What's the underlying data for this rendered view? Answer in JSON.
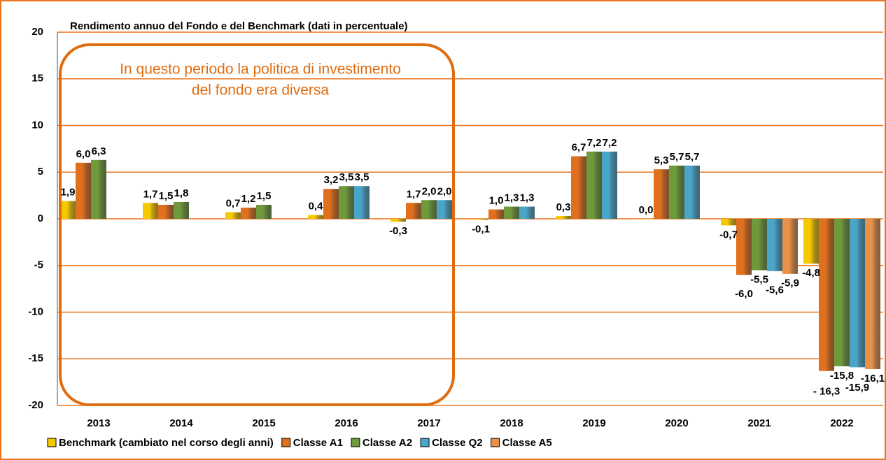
{
  "chart_data": {
    "type": "bar",
    "title": "Rendimento annuo del Fondo e del Benchmark (dati in percentuale)",
    "annotation": [
      "In questo periodo la politica di investimento",
      "del fondo era diversa"
    ],
    "categories": [
      "2013",
      "2014",
      "2015",
      "2016",
      "2017",
      "2018",
      "2019",
      "2020",
      "2021",
      "2022"
    ],
    "ylim": [
      -20,
      20
    ],
    "yticks": [
      -20,
      -15,
      -10,
      -5,
      0,
      5,
      10,
      15,
      20
    ],
    "grid": true,
    "grid_color": "#e8741e",
    "series": [
      {
        "name": "Benchmark (cambiato nel corso degli anni)",
        "color": "#f5c800",
        "values": [
          1.9,
          1.7,
          0.7,
          0.4,
          -0.3,
          -0.1,
          0.3,
          0.0,
          -0.7,
          -4.8
        ],
        "value_labels": [
          "1,9",
          "1,7",
          "0,7",
          "0,4",
          "-0,3",
          "-0,1",
          "0,3",
          "0,0",
          "-0,7",
          "-4,8"
        ]
      },
      {
        "name": "Classe A1",
        "color": "#e0701e",
        "values": [
          6.0,
          1.5,
          1.2,
          3.2,
          1.7,
          1.0,
          6.7,
          5.3,
          -6.0,
          -16.3
        ],
        "value_labels": [
          "6,0",
          "1,5",
          "1,2",
          "3,2",
          "1,7",
          "1,0",
          "6,7",
          "5,3",
          "-6,0",
          "- 16,3"
        ]
      },
      {
        "name": "Classe A2",
        "color": "#6e9a3c",
        "values": [
          6.3,
          1.8,
          1.5,
          3.5,
          2.0,
          1.3,
          7.2,
          5.7,
          -5.5,
          -15.8
        ],
        "value_labels": [
          "6,3",
          "1,8",
          "1,5",
          "3,5",
          "2,0",
          "1,3",
          "7,2",
          "5,7",
          "-5,5",
          "-15,8"
        ]
      },
      {
        "name": "Classe Q2",
        "color": "#4aa6c8",
        "values": [
          null,
          null,
          null,
          3.5,
          2.0,
          1.3,
          7.2,
          5.7,
          -5.6,
          -15.9
        ],
        "value_labels": [
          null,
          null,
          null,
          "3,5",
          "2,0",
          "1,3",
          "7,2",
          "5,7",
          "-5,6",
          "-15,9"
        ]
      },
      {
        "name": "Classe A5",
        "color": "#e8914a",
        "values": [
          null,
          null,
          null,
          null,
          null,
          null,
          null,
          null,
          -5.9,
          -16.1
        ],
        "value_labels": [
          null,
          null,
          null,
          null,
          null,
          null,
          null,
          null,
          "-5,9",
          "-16,1"
        ]
      }
    ]
  }
}
